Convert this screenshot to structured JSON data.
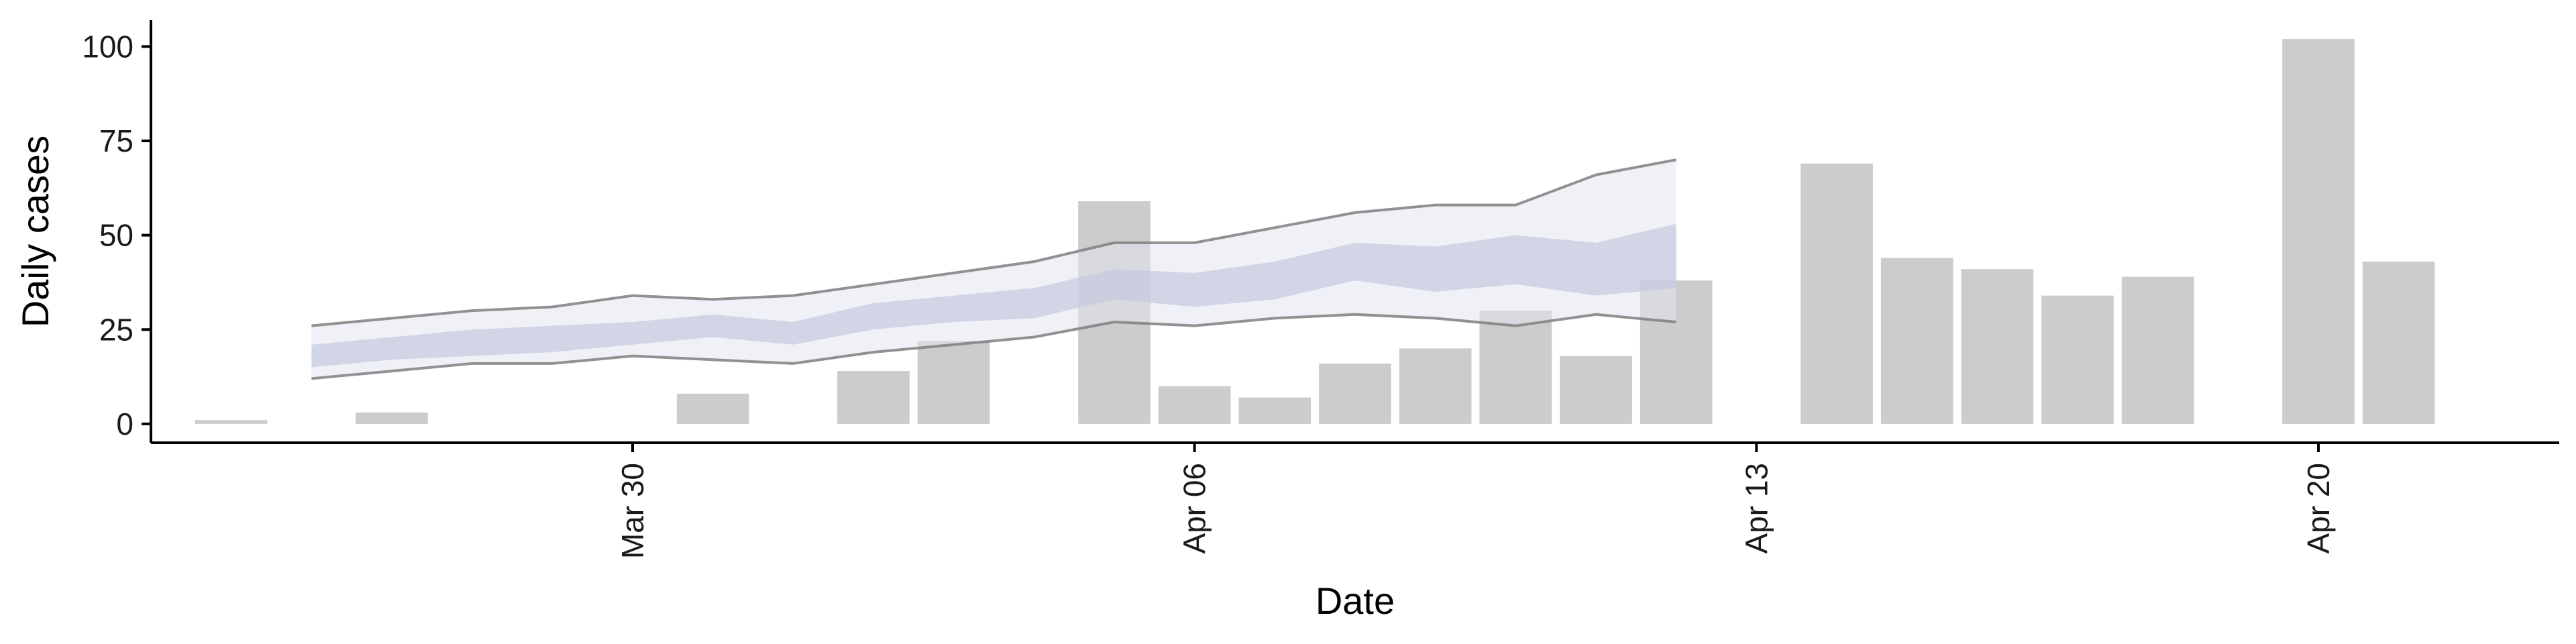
{
  "chart_data": {
    "type": "bar",
    "title": "",
    "xlabel": "Date",
    "ylabel": "Daily cases",
    "x_axis": "date",
    "xlim": [
      "2020-03-24",
      "2020-04-23"
    ],
    "ylim": [
      -5,
      107
    ],
    "grid": false,
    "x_ticks": [
      {
        "date": "2020-03-30",
        "label": "Mar 30"
      },
      {
        "date": "2020-04-06",
        "label": "Apr 06"
      },
      {
        "date": "2020-04-13",
        "label": "Apr 13"
      },
      {
        "date": "2020-04-20",
        "label": "Apr 20"
      }
    ],
    "y_ticks": [
      0,
      25,
      50,
      75,
      100
    ],
    "bars": {
      "color": "#cccccc",
      "dates": [
        "2020-03-25",
        "2020-03-27",
        "2020-03-31",
        "2020-04-02",
        "2020-04-03",
        "2020-04-05",
        "2020-04-06",
        "2020-04-07",
        "2020-04-08",
        "2020-04-09",
        "2020-04-10",
        "2020-04-11",
        "2020-04-12",
        "2020-04-14",
        "2020-04-15",
        "2020-04-16",
        "2020-04-17",
        "2020-04-18",
        "2020-04-20",
        "2020-04-21"
      ],
      "values": [
        1,
        3,
        8,
        14,
        22,
        59,
        10,
        7,
        16,
        20,
        30,
        18,
        38,
        69,
        44,
        41,
        34,
        39,
        102,
        43
      ]
    },
    "estimate": {
      "dates": [
        "2020-03-26",
        "2020-03-27",
        "2020-03-28",
        "2020-03-29",
        "2020-03-30",
        "2020-03-31",
        "2020-04-01",
        "2020-04-02",
        "2020-04-03",
        "2020-04-04",
        "2020-04-05",
        "2020-04-06",
        "2020-04-07",
        "2020-04-08",
        "2020-04-09",
        "2020-04-10",
        "2020-04-11",
        "2020-04-12"
      ],
      "outer_upper": [
        26,
        28,
        30,
        31,
        34,
        33,
        34,
        37,
        40,
        43,
        48,
        48,
        52,
        56,
        58,
        58,
        66,
        70
      ],
      "outer_lower": [
        12,
        14,
        16,
        16,
        18,
        17,
        16,
        19,
        21,
        23,
        27,
        26,
        28,
        29,
        28,
        26,
        29,
        27
      ],
      "inner_upper": [
        21,
        23,
        25,
        26,
        27,
        29,
        27,
        32,
        34,
        36,
        41,
        40,
        43,
        48,
        47,
        50,
        48,
        53
      ],
      "inner_lower": [
        15,
        17,
        18,
        19,
        21,
        23,
        21,
        25,
        27,
        28,
        33,
        31,
        33,
        38,
        35,
        37,
        34,
        36
      ],
      "outer_color": "#e4e6f0",
      "inner_color": "#c4c9de",
      "line_color": "#7f7f7f"
    }
  }
}
